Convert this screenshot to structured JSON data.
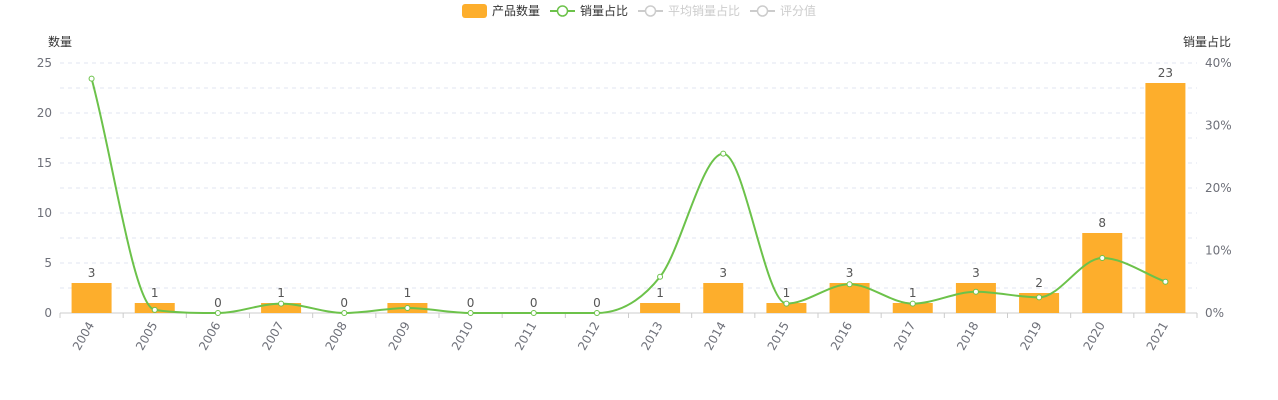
{
  "legend": [
    {
      "label": "产品数量",
      "type": "bar",
      "active": true
    },
    {
      "label": "销量占比",
      "type": "line",
      "active": true
    },
    {
      "label": "平均销量占比",
      "type": "line",
      "active": false
    },
    {
      "label": "评分值",
      "type": "line",
      "active": false
    }
  ],
  "colors": {
    "bar": "#FDAE2C",
    "line": "#6CC24A",
    "inactive": "#CCCCCC",
    "axis_text": "#6E7079",
    "grid": "#E0E6F1"
  },
  "chart_data": {
    "type": "bar",
    "categories": [
      "2004",
      "2005",
      "2006",
      "2007",
      "2008",
      "2009",
      "2010",
      "2011",
      "2012",
      "2013",
      "2014",
      "2015",
      "2016",
      "2017",
      "2018",
      "2019",
      "2020",
      "2021"
    ],
    "series": [
      {
        "name": "产品数量",
        "type": "bar",
        "axis": "left",
        "values": [
          3,
          1,
          0,
          1,
          0,
          1,
          0,
          0,
          0,
          1,
          3,
          1,
          3,
          1,
          3,
          2,
          8,
          23
        ]
      },
      {
        "name": "销量占比",
        "type": "line",
        "axis": "right",
        "unit": "%",
        "values": [
          37.5,
          0.5,
          0,
          1.5,
          0,
          0.8,
          0,
          0,
          0,
          5.8,
          25.5,
          1.5,
          4.6,
          1.5,
          3.4,
          2.5,
          8.8,
          5
        ]
      }
    ],
    "y_left": {
      "label": "数量",
      "ylim": [
        0,
        25
      ],
      "ticks": [
        "0",
        "5",
        "10",
        "15",
        "20",
        "25"
      ]
    },
    "y_right": {
      "label": "销量占比",
      "ylim": [
        0,
        40
      ],
      "ticks": [
        "0%",
        "10%",
        "20%",
        "30%",
        "40%"
      ]
    },
    "grid": true,
    "legend_position": "top-center",
    "smooth_line": true
  }
}
